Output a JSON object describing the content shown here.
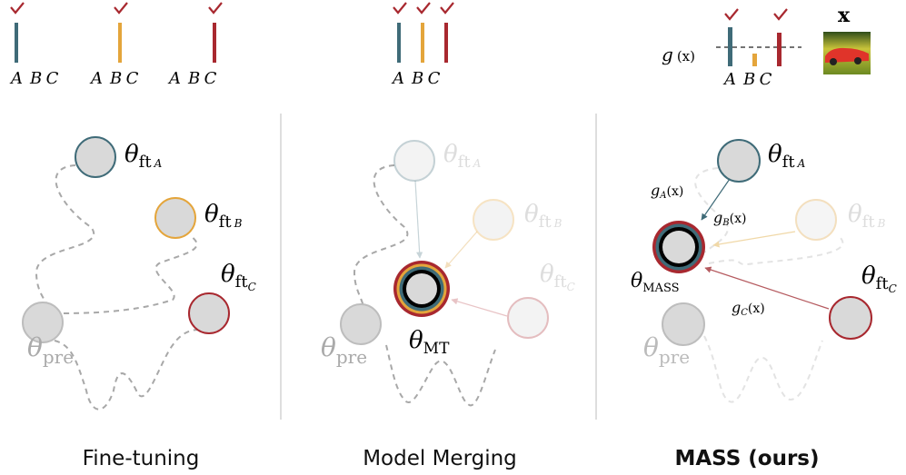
{
  "colors": {
    "task_a": "#3f6b78",
    "task_b": "#e4a53b",
    "task_c": "#a8282f",
    "node_fill": "#d9d9d9",
    "pre": "#9e9e9e"
  },
  "bar_labels": [
    "A",
    "B",
    "C"
  ],
  "router": {
    "label_g": "g",
    "label_x": "(x)",
    "input_label": "x"
  },
  "labels": {
    "theta": "θ",
    "ft": "ft",
    "pre": "pre",
    "mt": "MT",
    "mass": "MASS",
    "gA": "g",
    "gB": "g",
    "gC": "g",
    "gx": "(x)"
  },
  "captions": {
    "fine_tuning": "Fine-tuning",
    "model_merging": "Model Merging",
    "mass": "MASS (ours)"
  }
}
